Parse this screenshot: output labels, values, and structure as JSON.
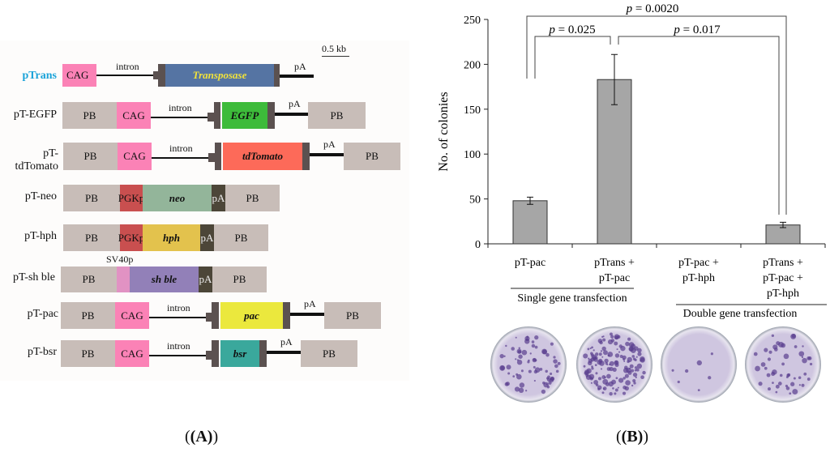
{
  "panelA": {
    "scale_label": "0.5 kb",
    "constructs": [
      {
        "name": "pTrans",
        "parts": {
          "promoter": "CAG",
          "intron": "intron",
          "gene": "Transposase",
          "pA": "pA"
        }
      },
      {
        "name": "pT-EGFP",
        "parts": {
          "pb1": "PB",
          "promoter": "CAG",
          "intron": "intron",
          "gene": "EGFP",
          "pA": "pA",
          "pb2": "PB"
        }
      },
      {
        "name": "pT-tdTomato",
        "parts": {
          "pb1": "PB",
          "promoter": "CAG",
          "intron": "intron",
          "gene": "tdTomato",
          "pA": "pA",
          "pb2": "PB"
        }
      },
      {
        "name": "pT-neo",
        "parts": {
          "pb1": "PB",
          "promoter": "PGKp",
          "gene": "neo",
          "pA": "pA",
          "pb2": "PB"
        }
      },
      {
        "name": "pT-hph",
        "parts": {
          "pb1": "PB",
          "promoter": "PGKp",
          "gene": "hph",
          "pA": "pA",
          "pb2": "PB"
        }
      },
      {
        "name": "pT-sh ble",
        "parts": {
          "pb1": "PB",
          "promoter": "SV40p",
          "gene": "sh ble",
          "pA": "pA",
          "pb2": "PB"
        }
      },
      {
        "name": "pT-pac",
        "parts": {
          "pb1": "PB",
          "promoter": "CAG",
          "intron": "intron",
          "gene": "pac",
          "pA": "pA",
          "pb2": "PB"
        }
      },
      {
        "name": "pT-bsr",
        "parts": {
          "pb1": "PB",
          "promoter": "CAG",
          "intron": "intron",
          "gene": "bsr",
          "pA": "pA",
          "pb2": "PB"
        }
      }
    ],
    "panel_label": "(A)"
  },
  "colors": {
    "pTrans_label": "#1aa3d9",
    "transposase": "#5574a3",
    "egfp": "#3dbb3a",
    "tdtomato": "#fd6a59",
    "neo": "#93b59a",
    "hph": "#e3c24d",
    "shble": "#9280b8",
    "pac": "#ebe83d",
    "bsr": "#3aa89c",
    "bar": "#a6a6a6"
  },
  "chart_data": {
    "type": "bar",
    "categories": [
      "pT-pac",
      "pTrans + pT-pac",
      "pT-pac + pT-hph",
      "pTrans + pT-pac + pT-hph"
    ],
    "category_lines": [
      [
        "pT-pac"
      ],
      [
        "pTrans +",
        "pT-pac"
      ],
      [
        "pT-pac +",
        "pT-hph"
      ],
      [
        "pTrans +",
        "pT-pac +",
        "pT-hph"
      ]
    ],
    "values": [
      48,
      183,
      0,
      21
    ],
    "errors": [
      4,
      28,
      0,
      3
    ],
    "ylabel": "No. of colonies",
    "ylim": [
      0,
      250
    ],
    "yticks": [
      0,
      50,
      100,
      150,
      200,
      250
    ],
    "groups": [
      {
        "label": "Single gene transfection",
        "categories": [
          0,
          1
        ]
      },
      {
        "label": "Double gene transfection",
        "categories": [
          2,
          3
        ]
      }
    ],
    "comparisons": [
      {
        "pair": [
          0,
          1
        ],
        "label": "p = 0.025"
      },
      {
        "pair": [
          1,
          3
        ],
        "label": "p = 0.017"
      },
      {
        "pair": [
          0,
          3
        ],
        "label": "p = 0.0020"
      }
    ]
  },
  "panelB": {
    "panel_label": "(B)"
  }
}
